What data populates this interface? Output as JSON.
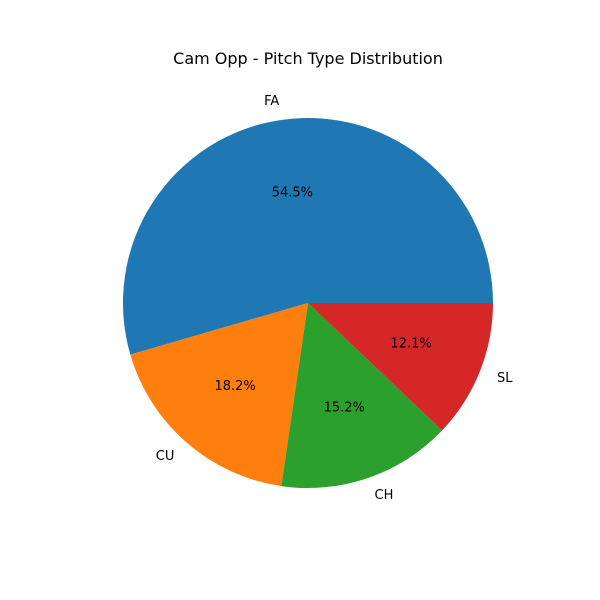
{
  "chart_data": {
    "type": "pie",
    "title": "Cam Opp - Pitch Type Distribution",
    "categories": [
      "FA",
      "CU",
      "CH",
      "SL"
    ],
    "values": [
      54.5,
      18.2,
      15.2,
      12.1
    ],
    "percent_labels": [
      "54.5%",
      "18.2%",
      "15.2%",
      "12.1%"
    ],
    "colors": [
      "#1f77b4",
      "#ff7f0e",
      "#2ca02c",
      "#d62728"
    ],
    "start_angle_deg": 0,
    "direction": "counterclockwise",
    "legend": "none"
  }
}
